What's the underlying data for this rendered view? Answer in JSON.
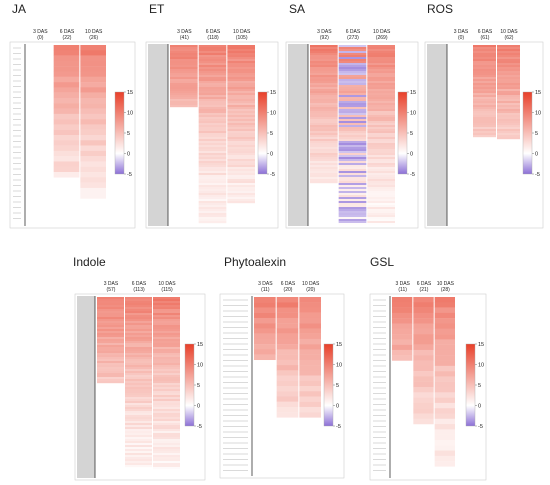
{
  "chart_data": [
    {
      "type": "heatmap",
      "title": "JA",
      "columns": [
        {
          "label": "3 DAS",
          "count": "(0)"
        },
        {
          "label": "6 DAS",
          "count": "(22)"
        },
        {
          "label": "10 DAS",
          "count": "(26)"
        }
      ],
      "colorbar": {
        "ticks": [
          "15",
          "10",
          "5",
          "0",
          "-5"
        ],
        "range": [
          -5,
          15
        ]
      }
    },
    {
      "type": "heatmap",
      "title": "ET",
      "columns": [
        {
          "label": "3 DAS",
          "count": "(41)"
        },
        {
          "label": "6 DAS",
          "count": "(118)"
        },
        {
          "label": "10 DAS",
          "count": "(105)"
        }
      ],
      "colorbar": {
        "ticks": [
          "15",
          "10",
          "5",
          "0",
          "-5"
        ],
        "range": [
          -5,
          15
        ]
      }
    },
    {
      "type": "heatmap",
      "title": "SA",
      "columns": [
        {
          "label": "3 DAS",
          "count": "(92)"
        },
        {
          "label": "6 DAS",
          "count": "(273)"
        },
        {
          "label": "10 DAS",
          "count": "(269)"
        }
      ],
      "colorbar": {
        "ticks": [
          "15",
          "10",
          "5",
          "0",
          "-5"
        ],
        "range": [
          -5,
          15
        ]
      }
    },
    {
      "type": "heatmap",
      "title": "ROS",
      "columns": [
        {
          "label": "3 DAS",
          "count": "(0)"
        },
        {
          "label": "6 DAS",
          "count": "(61)"
        },
        {
          "label": "10 DAS",
          "count": "(62)"
        }
      ],
      "colorbar": {
        "ticks": [
          "15",
          "10",
          "5",
          "0",
          "-5"
        ],
        "range": [
          -5,
          15
        ]
      }
    },
    {
      "type": "heatmap",
      "title": "Indole",
      "columns": [
        {
          "label": "3 DAS",
          "count": "(57)"
        },
        {
          "label": "6 DAS",
          "count": "(113)"
        },
        {
          "label": "10 DAS",
          "count": "(115)"
        }
      ],
      "colorbar": {
        "ticks": [
          "15",
          "10",
          "5",
          "0",
          "-5"
        ],
        "range": [
          -5,
          15
        ]
      }
    },
    {
      "type": "heatmap",
      "title": "Phytoalexin",
      "columns": [
        {
          "label": "3 DAS",
          "count": "(11)"
        },
        {
          "label": "6 DAS",
          "count": "(20)"
        },
        {
          "label": "10 DAS",
          "count": "(20)"
        }
      ],
      "colorbar": {
        "ticks": [
          "15",
          "10",
          "5",
          "0",
          "-5"
        ],
        "range": [
          -5,
          15
        ]
      }
    },
    {
      "type": "heatmap",
      "title": "GSL",
      "columns": [
        {
          "label": "3 DAS",
          "count": "(11)"
        },
        {
          "label": "6 DAS",
          "count": "(21)"
        },
        {
          "label": "10 DAS",
          "count": "(28)"
        }
      ],
      "colorbar": {
        "ticks": [
          "15",
          "10",
          "5",
          "0",
          "-5"
        ],
        "range": [
          -5,
          15
        ]
      }
    }
  ],
  "colors": {
    "high": "#e8402a",
    "zero": "#ffffff",
    "low": "#8c6fd6"
  }
}
